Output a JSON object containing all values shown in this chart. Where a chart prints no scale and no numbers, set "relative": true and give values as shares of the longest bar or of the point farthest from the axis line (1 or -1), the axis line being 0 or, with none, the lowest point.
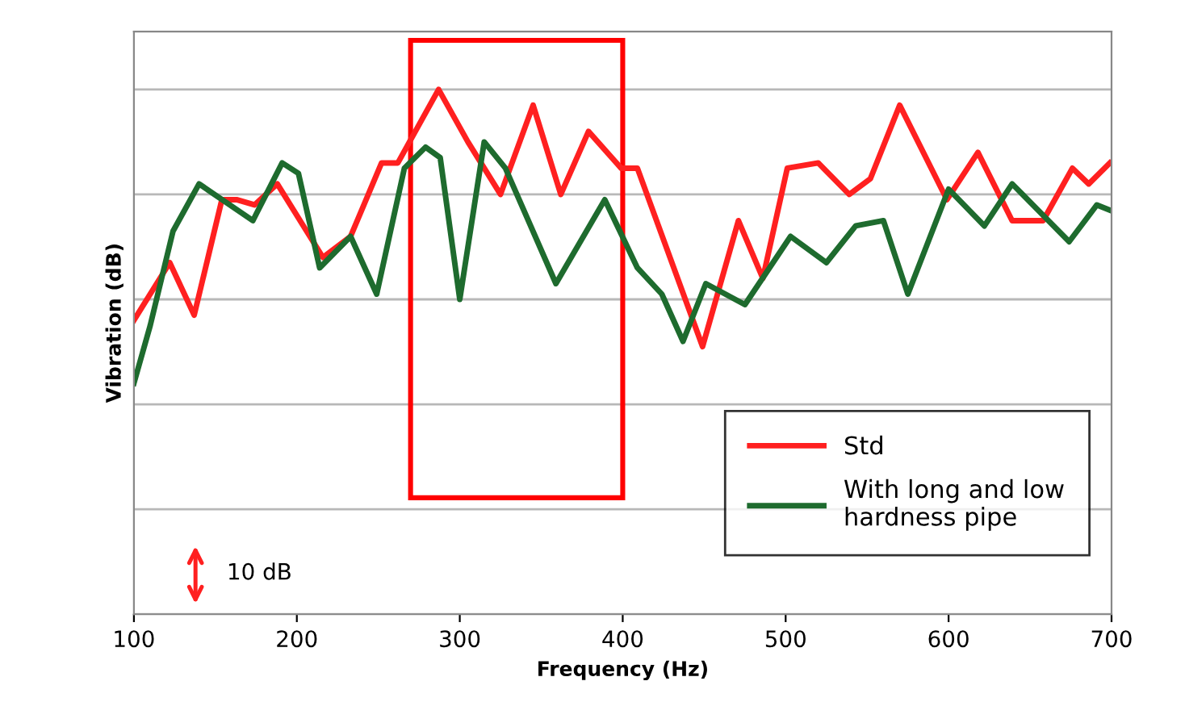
{
  "chart_data": {
    "type": "line",
    "relative": true,
    "xlabel": "Frequency (Hz)",
    "ylabel": "Vibration (dB)",
    "xlim": [
      100,
      700
    ],
    "xticks": [
      100,
      200,
      300,
      400,
      500,
      600,
      700
    ],
    "grid": "y",
    "legend": "bottom right",
    "marker": "none",
    "line_style": "solid",
    "annotations": [
      "10 dB"
    ],
    "series": [
      {
        "name": "Std",
        "color": "#ff2020",
        "x": [
          100,
          122,
          137,
          154,
          163,
          174,
          188,
          216,
          233,
          252,
          262,
          287,
          305,
          325,
          345,
          362,
          379,
          399,
          409,
          449,
          471,
          486,
          501,
          520,
          539,
          552,
          570,
          599,
          618,
          639,
          658,
          676,
          686,
          699
        ],
        "values": [
          0.56,
          0.67,
          0.57,
          0.79,
          0.79,
          0.78,
          0.82,
          0.68,
          0.72,
          0.86,
          0.86,
          1,
          0.9,
          0.8,
          0.97,
          0.8,
          0.92,
          0.85,
          0.85,
          0.51,
          0.75,
          0.64,
          0.85,
          0.86,
          0.8,
          0.83,
          0.97,
          0.79,
          0.88,
          0.75,
          0.75,
          0.85,
          0.82,
          0.86
        ]
      },
      {
        "name": "With long and low\nhardness pipe",
        "color": "#1e6b2e",
        "x": [
          100,
          110,
          124,
          140,
          173,
          191,
          201,
          214,
          233,
          249,
          266,
          279,
          288,
          300,
          315,
          328,
          359,
          389,
          409,
          424,
          437,
          451,
          475,
          503,
          525,
          543,
          560,
          575,
          600,
          622,
          639,
          674,
          691,
          699
        ],
        "values": [
          0.44,
          0.55,
          0.73,
          0.82,
          0.75,
          0.86,
          0.84,
          0.66,
          0.72,
          0.61,
          0.85,
          0.89,
          0.87,
          0.6,
          0.9,
          0.85,
          0.63,
          0.79,
          0.66,
          0.61,
          0.52,
          0.63,
          0.59,
          0.72,
          0.67,
          0.74,
          0.75,
          0.61,
          0.81,
          0.74,
          0.82,
          0.71,
          0.78,
          0.77
        ]
      }
    ]
  }
}
